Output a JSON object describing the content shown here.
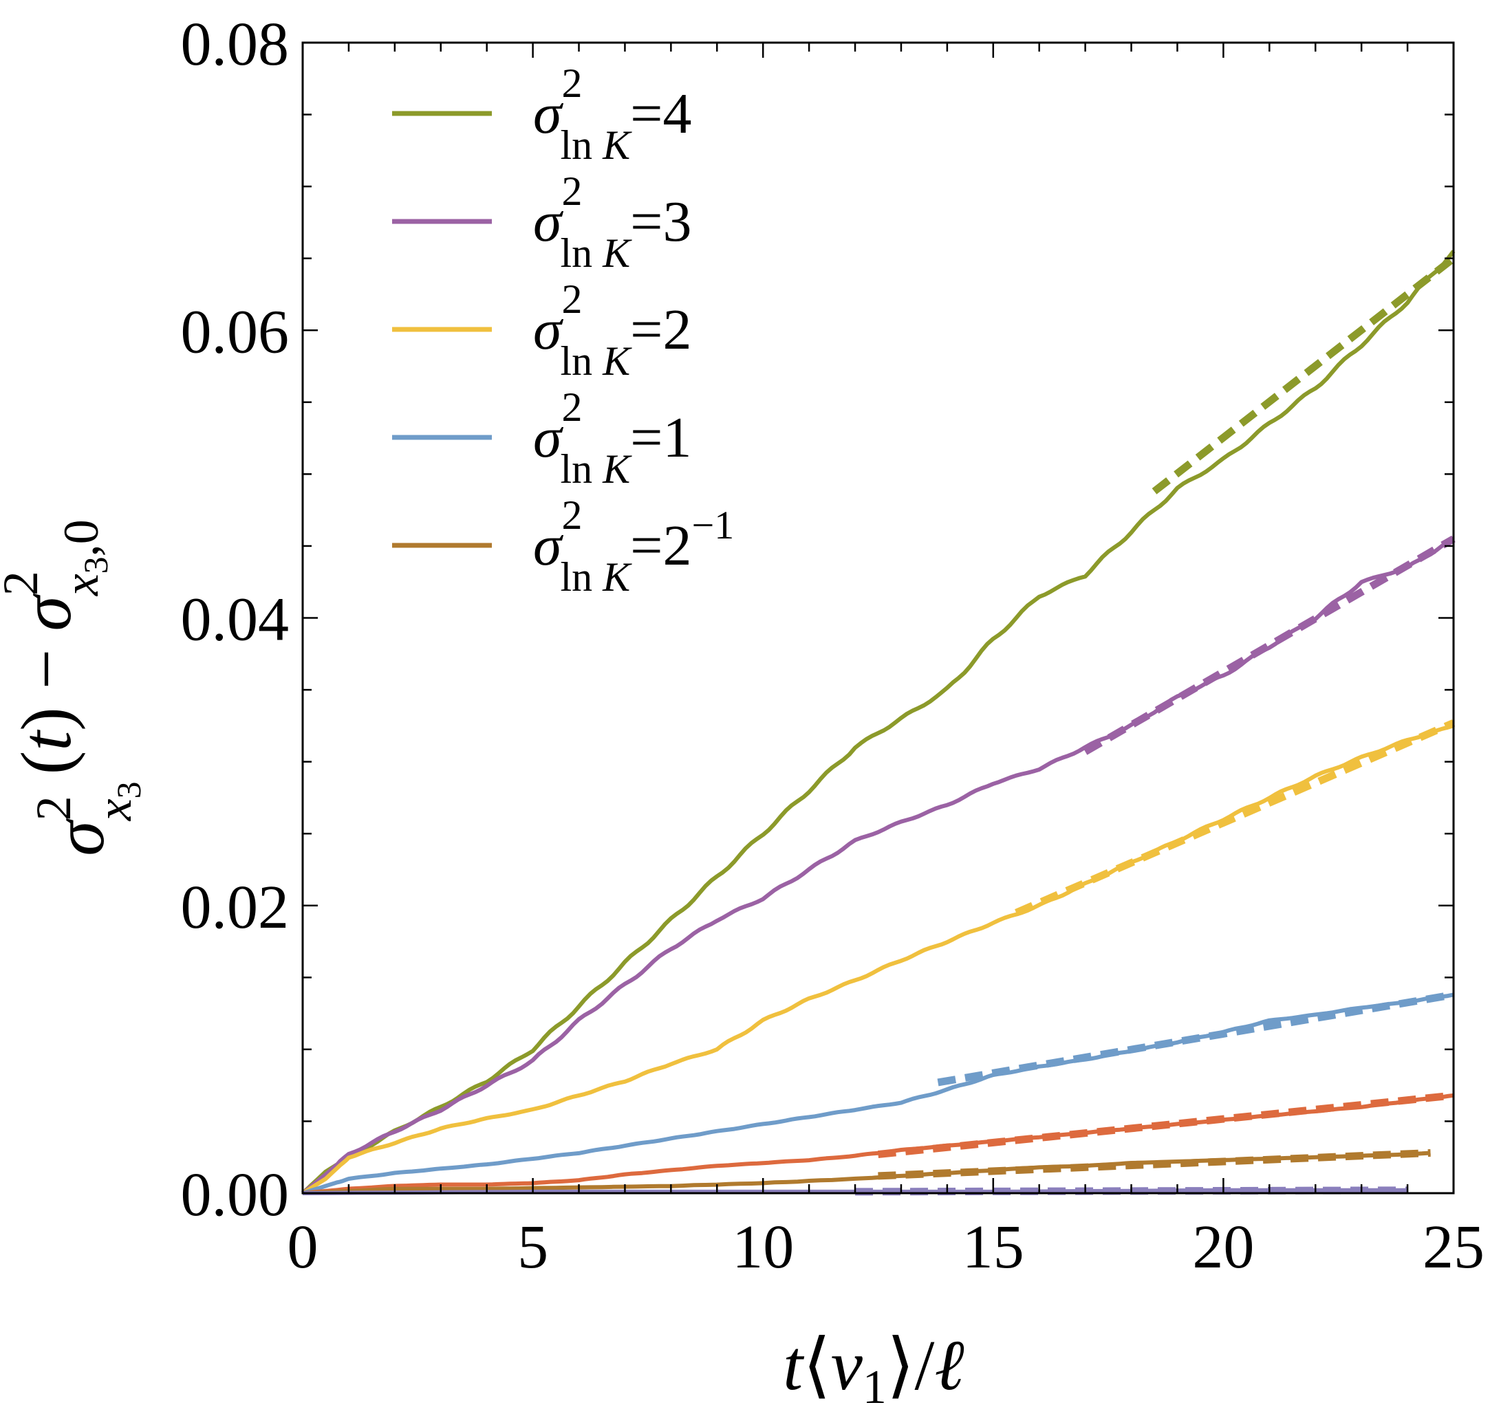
{
  "chart_data": {
    "type": "line",
    "title": "",
    "xlabel": "t⟨v₁⟩/ℓ",
    "ylabel": "σ²x₃(t) − σ²x₃,0",
    "xlim": [
      0,
      25
    ],
    "ylim": [
      0,
      0.08
    ],
    "x_ticks": [
      "0",
      "5",
      "10",
      "15",
      "20",
      "25"
    ],
    "y_ticks": [
      "0.00",
      "0.02",
      "0.04",
      "0.06",
      "0.08"
    ],
    "legend_position": "top-left",
    "legend": [
      {
        "label": "σ²ln K=4",
        "base": "σ",
        "sup": "2",
        "sub": "ln",
        "subvar": "K",
        "rest": "=4",
        "color": "#8c9a2a"
      },
      {
        "label": "σ²ln K=3",
        "base": "σ",
        "sup": "2",
        "sub": "ln",
        "subvar": "K",
        "rest": "=3",
        "color": "#9b62a4"
      },
      {
        "label": "σ²ln K=2",
        "base": "σ",
        "sup": "2",
        "sub": "ln",
        "subvar": "K",
        "rest": "=2",
        "color": "#f0c03e"
      },
      {
        "label": "σ²ln K=1",
        "base": "σ",
        "sup": "2",
        "sub": "ln",
        "subvar": "K",
        "rest": "=1",
        "color": "#6f9cc9"
      },
      {
        "label": "σ²ln K=2⁻¹",
        "base": "σ",
        "sup": "2",
        "sub": "ln",
        "subvar": "K",
        "rest": "=2",
        "restsup": "−1",
        "color": "#b07a2e"
      }
    ],
    "series": [
      {
        "name": "σ²lnK=4",
        "color": "#8c9a2a",
        "x": [
          0,
          0.5,
          1,
          2,
          3,
          4,
          5,
          6,
          7,
          8,
          9,
          10,
          11,
          12,
          13,
          14,
          15,
          16,
          17,
          18,
          19,
          20,
          21,
          22,
          23,
          24,
          25
        ],
        "y": [
          0,
          0.0015,
          0.0025,
          0.0043,
          0.006,
          0.0078,
          0.01,
          0.013,
          0.016,
          0.019,
          0.022,
          0.025,
          0.028,
          0.031,
          0.033,
          0.035,
          0.0385,
          0.0415,
          0.043,
          0.046,
          0.049,
          0.051,
          0.0535,
          0.056,
          0.059,
          0.062,
          0.0655
        ],
        "fit_x": [
          18.5,
          25
        ],
        "fit_y": [
          0.0488,
          0.065
        ]
      },
      {
        "name": "σ²lnK=3",
        "color": "#9b62a4",
        "x": [
          0,
          0.5,
          1,
          2,
          3,
          4,
          5,
          6,
          7,
          8,
          9,
          10,
          11,
          12,
          13,
          14,
          15,
          16,
          17,
          18,
          19,
          20,
          21,
          22,
          23,
          24,
          25
        ],
        "y": [
          0,
          0.0013,
          0.0027,
          0.0043,
          0.0058,
          0.0075,
          0.0092,
          0.012,
          0.0145,
          0.017,
          0.019,
          0.0205,
          0.0225,
          0.0245,
          0.0258,
          0.027,
          0.0285,
          0.0295,
          0.031,
          0.0325,
          0.0345,
          0.036,
          0.038,
          0.04,
          0.0425,
          0.0435,
          0.0455
        ],
        "fit_x": [
          17,
          25
        ],
        "fit_y": [
          0.0307,
          0.0455
        ]
      },
      {
        "name": "σ²lnK=2",
        "color": "#f0c03e",
        "x": [
          0,
          0.5,
          1,
          2,
          3,
          4,
          5,
          6,
          7,
          8,
          9,
          10,
          11,
          12,
          13,
          14,
          15,
          16,
          17,
          18,
          19,
          20,
          21,
          22,
          23,
          24,
          25
        ],
        "y": [
          0,
          0.001,
          0.0025,
          0.0035,
          0.0045,
          0.0052,
          0.0058,
          0.0068,
          0.0078,
          0.009,
          0.01,
          0.012,
          0.0135,
          0.0148,
          0.0162,
          0.0175,
          0.0188,
          0.02,
          0.0215,
          0.023,
          0.0245,
          0.026,
          0.0275,
          0.029,
          0.0303,
          0.0315,
          0.0325
        ],
        "fit_x": [
          15.5,
          25
        ],
        "fit_y": [
          0.0195,
          0.0327
        ]
      },
      {
        "name": "σ²lnK=1",
        "color": "#6f9cc9",
        "x": [
          0,
          0.5,
          1,
          2,
          3,
          4,
          5,
          6,
          7,
          8,
          9,
          10,
          11,
          12,
          13,
          14,
          15,
          16,
          17,
          18,
          19,
          20,
          21,
          22,
          23,
          24,
          25
        ],
        "y": [
          0,
          0.0005,
          0.001,
          0.0014,
          0.0017,
          0.002,
          0.0024,
          0.0028,
          0.0033,
          0.0038,
          0.0043,
          0.0048,
          0.0053,
          0.0058,
          0.0063,
          0.0072,
          0.0082,
          0.0088,
          0.0093,
          0.0099,
          0.0105,
          0.0112,
          0.012,
          0.0124,
          0.0129,
          0.0133,
          0.0138
        ],
        "fit_x": [
          13.8,
          25
        ],
        "fit_y": [
          0.0077,
          0.0138
        ]
      },
      {
        "name": "red",
        "color": "#dd6a3e",
        "x": [
          0,
          1,
          2,
          3,
          4,
          5,
          6,
          7,
          8,
          9,
          10,
          11,
          12,
          13,
          14,
          15,
          16,
          17,
          18,
          19,
          20,
          21,
          22,
          23,
          24,
          25
        ],
        "y": [
          0,
          0.0003,
          0.0005,
          0.0006,
          0.0006,
          0.0007,
          0.0009,
          0.0013,
          0.0016,
          0.0019,
          0.0021,
          0.0023,
          0.0026,
          0.003,
          0.0033,
          0.0036,
          0.0039,
          0.0042,
          0.0045,
          0.0048,
          0.0051,
          0.0054,
          0.0057,
          0.006,
          0.0064,
          0.0068
        ],
        "fit_x": [
          12.5,
          25
        ],
        "fit_y": [
          0.0027,
          0.0068
        ]
      },
      {
        "name": "σ²lnK=2⁻¹",
        "color": "#b07a2e",
        "x": [
          0,
          2,
          4,
          6,
          8,
          10,
          12,
          13,
          14,
          15,
          16,
          17,
          18,
          19,
          20,
          21,
          22,
          23,
          24,
          24.5
        ],
        "y": [
          0,
          0.0003,
          0.0003,
          0.0004,
          0.0005,
          0.0007,
          0.001,
          0.0012,
          0.0014,
          0.0016,
          0.0018,
          0.0019,
          0.0021,
          0.0022,
          0.0023,
          0.0024,
          0.0025,
          0.0026,
          0.0027,
          0.0028
        ],
        "fit_x": [
          12.5,
          24.5
        ],
        "fit_y": [
          0.0012,
          0.0028
        ]
      },
      {
        "name": "violet-base",
        "color": "#8a7fbc",
        "x": [
          0,
          5,
          10,
          15,
          20,
          24
        ],
        "y": [
          0,
          0.0001,
          0.0001,
          0.0001,
          0.0002,
          0.0002
        ],
        "fit_x": [
          12,
          24
        ],
        "fit_y": [
          0.0001,
          0.0002
        ]
      }
    ]
  }
}
